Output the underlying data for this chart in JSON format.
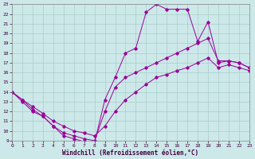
{
  "xlabel": "Windchill (Refroidissement éolien,°C)",
  "background_color": "#cce8e8",
  "grid_color": "#aacccc",
  "line_color": "#990099",
  "xlim": [
    0,
    23
  ],
  "ylim": [
    9,
    23
  ],
  "xticks": [
    0,
    1,
    2,
    3,
    4,
    5,
    6,
    7,
    8,
    9,
    10,
    11,
    12,
    13,
    14,
    15,
    16,
    17,
    18,
    19,
    20,
    21,
    22,
    23
  ],
  "yticks": [
    9,
    10,
    11,
    12,
    13,
    14,
    15,
    16,
    17,
    18,
    19,
    20,
    21,
    22,
    23
  ],
  "line_zigzag_x": [
    0,
    1,
    2,
    3,
    4,
    5,
    6,
    7,
    8,
    9,
    10,
    11,
    12,
    13,
    14,
    15,
    16,
    17,
    18,
    19,
    20,
    21,
    22,
    23
  ],
  "line_zigzag_y": [
    14.0,
    13.2,
    12.2,
    11.5,
    10.5,
    9.5,
    9.2,
    8.9,
    8.8,
    13.2,
    15.5,
    18.0,
    18.5,
    22.2,
    23.0,
    22.5,
    22.5,
    22.5,
    19.2,
    21.2,
    17.0,
    17.2,
    17.0,
    16.5
  ],
  "line_straight_x": [
    0,
    1,
    2,
    3,
    4,
    5,
    6,
    7,
    8,
    9,
    10,
    11,
    12,
    13,
    14,
    15,
    16,
    17,
    18,
    19,
    20,
    21,
    22,
    23
  ],
  "line_straight_y": [
    14.0,
    13.2,
    12.5,
    11.8,
    11.0,
    10.5,
    10.0,
    9.8,
    9.5,
    10.5,
    12.0,
    13.2,
    14.0,
    14.8,
    15.5,
    15.8,
    16.2,
    16.5,
    17.0,
    17.5,
    16.5,
    16.8,
    16.5,
    16.2
  ],
  "line_mid_x": [
    0,
    1,
    2,
    3,
    4,
    5,
    6,
    7,
    8,
    9,
    10,
    11,
    12,
    13,
    14,
    15,
    16,
    17,
    18,
    19,
    20,
    21,
    22,
    23
  ],
  "line_mid_y": [
    14.0,
    13.0,
    12.0,
    11.5,
    10.5,
    9.8,
    9.5,
    9.2,
    9.0,
    12.0,
    14.5,
    15.5,
    16.0,
    16.5,
    17.0,
    17.5,
    18.0,
    18.5,
    19.0,
    19.5,
    17.2,
    17.2,
    17.0,
    16.5
  ]
}
